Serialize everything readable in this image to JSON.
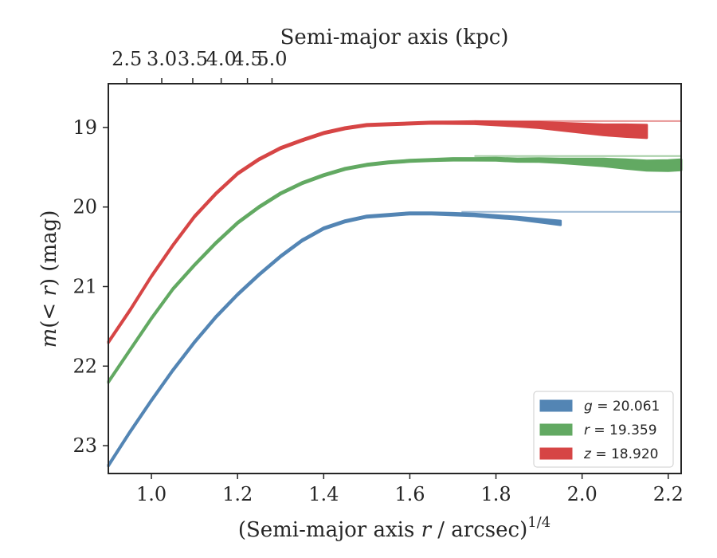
{
  "chart_data": {
    "type": "line",
    "title": "",
    "xlabel": "(Semi-major axis r / arcsec)",
    "xlabel_parts": {
      "prefix": "(Semi-major axis ",
      "var": "r",
      "suffix": " / arcsec)",
      "sup": "1/4"
    },
    "ylabel_parts": {
      "var1": "m",
      "mid": "(< ",
      "var2": "r",
      "end": ")",
      "unit": " (mag)"
    },
    "top_xlabel": "Semi-major axis (kpc)",
    "xlim": [
      0.9,
      2.23
    ],
    "ylim": [
      23.35,
      18.45
    ],
    "y_inverted": true,
    "x_ticks": [
      1.0,
      1.2,
      1.4,
      1.6,
      1.8,
      2.0,
      2.2
    ],
    "x_tick_labels": [
      "1.0",
      "1.2",
      "1.4",
      "1.6",
      "1.8",
      "2.0",
      "2.2"
    ],
    "y_ticks": [
      19,
      20,
      21,
      22,
      23
    ],
    "y_tick_labels": [
      "19",
      "20",
      "21",
      "22",
      "23"
    ],
    "top_ticks": [
      {
        "label": "2.5",
        "x": 0.943
      },
      {
        "label": "3.0",
        "x": 1.024
      },
      {
        "label": "3.5",
        "x": 1.096
      },
      {
        "label": "4.0",
        "x": 1.162
      },
      {
        "label": "4.5",
        "x": 1.223
      },
      {
        "label": "5.0",
        "x": 1.28
      }
    ],
    "grid": false,
    "legend_position": "lower-right",
    "series": [
      {
        "name": "g = 20.061",
        "legend_var": "g",
        "legend_value": "= 20.061",
        "color": "#4a7fb0",
        "asymptote": 20.061,
        "x": [
          0.9,
          0.95,
          1.0,
          1.05,
          1.1,
          1.15,
          1.2,
          1.25,
          1.3,
          1.35,
          1.4,
          1.45,
          1.5,
          1.55,
          1.6,
          1.65,
          1.7,
          1.75,
          1.8,
          1.85,
          1.9,
          1.95
        ],
        "y": [
          23.25,
          22.83,
          22.43,
          22.05,
          21.7,
          21.38,
          21.1,
          20.85,
          20.62,
          20.42,
          20.27,
          20.18,
          20.12,
          20.1,
          20.08,
          20.08,
          20.09,
          20.1,
          20.12,
          20.14,
          20.17,
          20.2
        ],
        "width": [
          0.02,
          0.02,
          0.02,
          0.02,
          0.02,
          0.02,
          0.02,
          0.02,
          0.02,
          0.02,
          0.02,
          0.02,
          0.02,
          0.02,
          0.02,
          0.02,
          0.025,
          0.025,
          0.03,
          0.03,
          0.04,
          0.05
        ]
      },
      {
        "name": "r = 19.359",
        "legend_var": "r",
        "legend_value": "= 19.359",
        "color": "#5aa55a",
        "asymptote": 19.359,
        "x": [
          0.9,
          0.95,
          1.0,
          1.05,
          1.1,
          1.15,
          1.2,
          1.25,
          1.3,
          1.35,
          1.4,
          1.45,
          1.5,
          1.55,
          1.6,
          1.65,
          1.7,
          1.75,
          1.8,
          1.85,
          1.9,
          1.95,
          2.0,
          2.05,
          2.1,
          2.15,
          2.2,
          2.23
        ],
        "y": [
          22.2,
          21.8,
          21.4,
          21.03,
          20.73,
          20.45,
          20.2,
          20.0,
          19.83,
          19.7,
          19.6,
          19.52,
          19.47,
          19.44,
          19.42,
          19.41,
          19.4,
          19.4,
          19.4,
          19.41,
          19.41,
          19.42,
          19.43,
          19.44,
          19.46,
          19.48,
          19.48,
          19.47
        ],
        "width": [
          0.02,
          0.02,
          0.02,
          0.02,
          0.02,
          0.02,
          0.02,
          0.02,
          0.02,
          0.02,
          0.02,
          0.02,
          0.02,
          0.02,
          0.02,
          0.02,
          0.025,
          0.025,
          0.03,
          0.035,
          0.04,
          0.05,
          0.07,
          0.09,
          0.11,
          0.12,
          0.13,
          0.13
        ]
      },
      {
        "name": "z = 18.920",
        "legend_var": "z",
        "legend_value": "= 18.920",
        "color": "#d43c3c",
        "asymptote": 18.92,
        "x": [
          0.9,
          0.95,
          1.0,
          1.05,
          1.1,
          1.15,
          1.2,
          1.25,
          1.3,
          1.35,
          1.4,
          1.45,
          1.5,
          1.55,
          1.6,
          1.65,
          1.7,
          1.75,
          1.8,
          1.85,
          1.9,
          1.95,
          2.0,
          2.05,
          2.1,
          2.15
        ],
        "y": [
          21.7,
          21.3,
          20.87,
          20.48,
          20.12,
          19.83,
          19.58,
          19.4,
          19.26,
          19.16,
          19.07,
          19.01,
          18.97,
          18.96,
          18.95,
          18.94,
          18.94,
          18.94,
          18.95,
          18.96,
          18.97,
          18.99,
          19.01,
          19.03,
          19.04,
          19.05
        ],
        "width": [
          0.02,
          0.02,
          0.02,
          0.02,
          0.02,
          0.02,
          0.02,
          0.02,
          0.02,
          0.02,
          0.02,
          0.02,
          0.02,
          0.02,
          0.02,
          0.02,
          0.025,
          0.03,
          0.04,
          0.05,
          0.07,
          0.09,
          0.11,
          0.13,
          0.15,
          0.16
        ]
      }
    ]
  }
}
